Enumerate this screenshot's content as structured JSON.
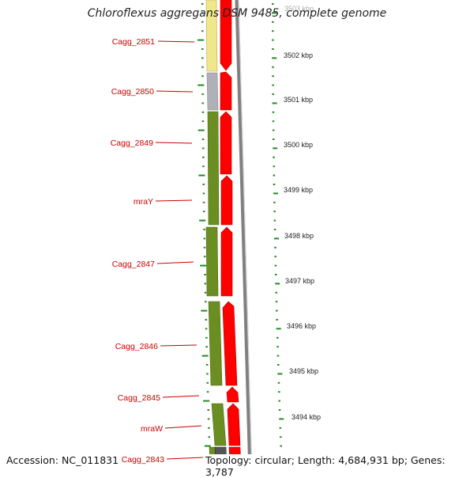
{
  "title": "Chloroflexus aggregans DSM 9485, complete genome",
  "footer": {
    "accession": "Accession: NC_011831",
    "summary": "Topology: circular; Length: 4,684,931 bp; Genes: 3,787"
  },
  "colors": {
    "label_red": "#cc0000",
    "cds_forward": "#ff0000",
    "cog_green": "#6b8e23",
    "cog_yellow": "#f0e68c",
    "cog_gray": "#b0b0b8",
    "tick_green": "#228b22",
    "backbone_gray": "#808080",
    "reverse_blue": "#0000cc"
  },
  "gene_labels": [
    "Cagg_2851",
    "Cagg_2850",
    "Cagg_2849",
    "mraY",
    "Cagg_2847",
    "Cagg_2846",
    "Cagg_2845",
    "mraW",
    "Cagg_2843"
  ],
  "ruler_ticks": [
    "3503 kbp",
    "3502 kbp",
    "3501 kbp",
    "3500 kbp",
    "3499 kbp",
    "3498 kbp",
    "3497 kbp",
    "3496 kbp",
    "3495 kbp",
    "3494 kbp"
  ],
  "cog_blocks": [
    {
      "category": "yellow"
    },
    {
      "category": "gray"
    },
    {
      "category": "green"
    },
    {
      "category": "green"
    },
    {
      "category": "green"
    },
    {
      "category": "green"
    },
    {
      "category": "green"
    },
    {
      "category": "green"
    }
  ],
  "forward_genes": [
    {
      "strand": "+"
    },
    {
      "strand": "+"
    },
    {
      "strand": "+"
    },
    {
      "strand": "+"
    },
    {
      "strand": "+"
    },
    {
      "strand": "+"
    },
    {
      "strand": "+"
    },
    {
      "strand": "+"
    },
    {
      "strand": "+"
    },
    {
      "strand": "+"
    }
  ]
}
